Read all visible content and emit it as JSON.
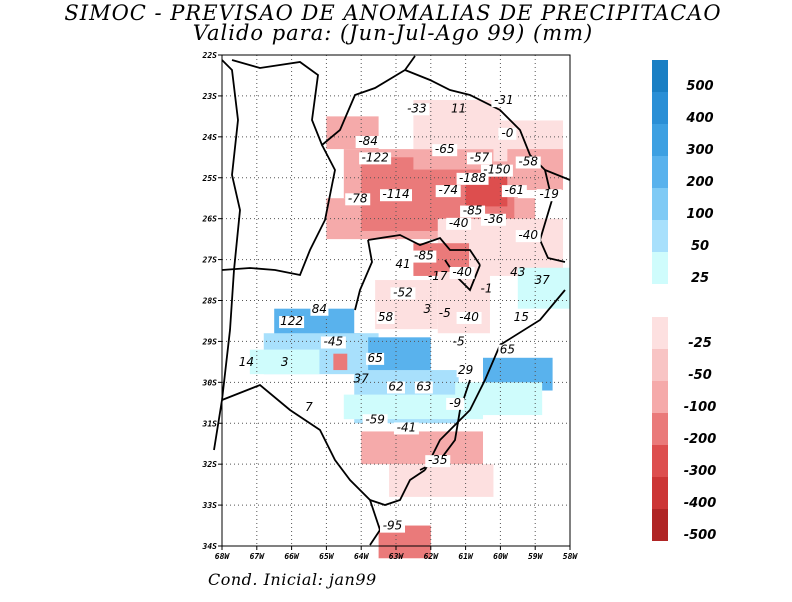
{
  "title": {
    "line1": "SIMOC - PREVISAO DE ANOMALIAS DE PRECIPITACAO",
    "line2": "Valido para: (Jun-Jul-Ago 99) (mm)"
  },
  "footer": "Cond. Inicial: jan99",
  "map": {
    "lon_ticks": [
      "68W",
      "67W",
      "66W",
      "65W",
      "64W",
      "63W",
      "62W",
      "61W",
      "60W",
      "59W",
      "58W"
    ],
    "lat_ticks": [
      "22S",
      "23S",
      "24S",
      "25S",
      "26S",
      "27S",
      "28S",
      "29S",
      "30S",
      "31S",
      "32S",
      "33S",
      "34S"
    ]
  },
  "contour_labels": [
    {
      "text": "-33",
      "lon": -62.4,
      "lat": -23.4,
      "boxed": true
    },
    {
      "text": "11",
      "lon": -61.2,
      "lat": -23.4,
      "boxed": false
    },
    {
      "text": "-31",
      "lon": -59.9,
      "lat": -23.2,
      "boxed": true
    },
    {
      "text": "-0",
      "lon": -59.8,
      "lat": -24.0,
      "boxed": true
    },
    {
      "text": "-84",
      "lon": -63.8,
      "lat": -24.2,
      "boxed": true
    },
    {
      "text": "-65",
      "lon": -61.6,
      "lat": -24.4,
      "boxed": true
    },
    {
      "text": "-57",
      "lon": -60.6,
      "lat": -24.6,
      "boxed": true
    },
    {
      "text": "-58",
      "lon": -59.2,
      "lat": -24.7,
      "boxed": true
    },
    {
      "text": "-122",
      "lon": -63.6,
      "lat": -24.6,
      "boxed": true
    },
    {
      "text": "-150",
      "lon": -60.1,
      "lat": -24.9,
      "boxed": true
    },
    {
      "text": "-188",
      "lon": -60.8,
      "lat": -25.1,
      "boxed": true
    },
    {
      "text": "-78",
      "lon": -64.1,
      "lat": -25.6,
      "boxed": true
    },
    {
      "text": "-114",
      "lon": -63.0,
      "lat": -25.5,
      "boxed": true
    },
    {
      "text": "-74",
      "lon": -61.5,
      "lat": -25.4,
      "boxed": true
    },
    {
      "text": "-61",
      "lon": -59.6,
      "lat": -25.4,
      "boxed": true
    },
    {
      "text": "-19",
      "lon": -58.6,
      "lat": -25.5,
      "boxed": true
    },
    {
      "text": "-85",
      "lon": -60.8,
      "lat": -25.9,
      "boxed": true
    },
    {
      "text": "-36",
      "lon": -60.2,
      "lat": -26.1,
      "boxed": true
    },
    {
      "text": "-40",
      "lon": -61.2,
      "lat": -26.2,
      "boxed": true
    },
    {
      "text": "-40",
      "lon": -59.2,
      "lat": -26.5,
      "boxed": true
    },
    {
      "text": "-85",
      "lon": -62.2,
      "lat": -27.0,
      "boxed": true
    },
    {
      "text": "41",
      "lon": -62.8,
      "lat": -27.2,
      "boxed": true
    },
    {
      "text": "-17",
      "lon": -61.8,
      "lat": -27.5,
      "boxed": false
    },
    {
      "text": "-40",
      "lon": -61.1,
      "lat": -27.4,
      "boxed": true
    },
    {
      "text": "43",
      "lon": -59.5,
      "lat": -27.4,
      "boxed": false
    },
    {
      "text": "37",
      "lon": -58.8,
      "lat": -27.6,
      "boxed": false
    },
    {
      "text": "-1",
      "lon": -60.4,
      "lat": -27.8,
      "boxed": false
    },
    {
      "text": "-52",
      "lon": -62.8,
      "lat": -27.9,
      "boxed": true
    },
    {
      "text": "122",
      "lon": -66.0,
      "lat": -28.6,
      "boxed": true
    },
    {
      "text": "84",
      "lon": -65.2,
      "lat": -28.3,
      "boxed": true
    },
    {
      "text": "58",
      "lon": -63.3,
      "lat": -28.5,
      "boxed": true
    },
    {
      "text": "3",
      "lon": -62.1,
      "lat": -28.3,
      "boxed": false
    },
    {
      "text": "-5",
      "lon": -61.6,
      "lat": -28.4,
      "boxed": false
    },
    {
      "text": "-40",
      "lon": -60.9,
      "lat": -28.5,
      "boxed": true
    },
    {
      "text": "15",
      "lon": -59.4,
      "lat": -28.5,
      "boxed": false
    },
    {
      "text": "-45",
      "lon": -64.8,
      "lat": -29.1,
      "boxed": true
    },
    {
      "text": "-5",
      "lon": -61.2,
      "lat": -29.1,
      "boxed": false
    },
    {
      "text": "65",
      "lon": -59.8,
      "lat": -29.3,
      "boxed": true
    },
    {
      "text": "14",
      "lon": -67.3,
      "lat": -29.6,
      "boxed": false
    },
    {
      "text": "3",
      "lon": -66.2,
      "lat": -29.6,
      "boxed": false
    },
    {
      "text": "65",
      "lon": -63.6,
      "lat": -29.5,
      "boxed": true
    },
    {
      "text": "29",
      "lon": -61.0,
      "lat": -29.8,
      "boxed": true
    },
    {
      "text": "37",
      "lon": -64.0,
      "lat": -30.0,
      "boxed": false
    },
    {
      "text": "62",
      "lon": -63.0,
      "lat": -30.2,
      "boxed": true
    },
    {
      "text": "63",
      "lon": -62.2,
      "lat": -30.2,
      "boxed": true
    },
    {
      "text": "-9",
      "lon": -61.3,
      "lat": -30.6,
      "boxed": true
    },
    {
      "text": "7",
      "lon": -65.5,
      "lat": -30.7,
      "boxed": false
    },
    {
      "text": "-59",
      "lon": -63.6,
      "lat": -31.0,
      "boxed": true
    },
    {
      "text": "-41",
      "lon": -62.7,
      "lat": -31.2,
      "boxed": true
    },
    {
      "text": "-35",
      "lon": -61.8,
      "lat": -32.0,
      "boxed": true
    },
    {
      "text": "-95",
      "lon": -63.1,
      "lat": -33.6,
      "boxed": true
    }
  ],
  "field_cells": [
    {
      "lon": -65.0,
      "lat": -23.5,
      "w": 1.5,
      "h": 0.8,
      "color": "#f5aaaa"
    },
    {
      "lon": -64.5,
      "lat": -24.3,
      "w": 5.0,
      "h": 1.2,
      "color": "#f5aaaa"
    },
    {
      "lon": -65.0,
      "lat": -25.5,
      "w": 6.0,
      "h": 1.0,
      "color": "#f5aaaa"
    },
    {
      "lon": -64.0,
      "lat": -24.5,
      "w": 1.5,
      "h": 1.8,
      "color": "#ea7a7a"
    },
    {
      "lon": -62.8,
      "lat": -24.8,
      "w": 3.2,
      "h": 1.5,
      "color": "#ea7a7a"
    },
    {
      "lon": -61.0,
      "lat": -24.9,
      "w": 1.2,
      "h": 0.8,
      "color": "#dd4e4e"
    },
    {
      "lon": -62.5,
      "lat": -23.1,
      "w": 2.5,
      "h": 1.2,
      "color": "#fde0e0"
    },
    {
      "lon": -60.2,
      "lat": -23.6,
      "w": 2.0,
      "h": 1.0,
      "color": "#fde0e0"
    },
    {
      "lon": -59.8,
      "lat": -24.3,
      "w": 1.6,
      "h": 1.0,
      "color": "#f5aaaa"
    },
    {
      "lon": -61.8,
      "lat": -26.0,
      "w": 3.6,
      "h": 1.4,
      "color": "#fde0e0"
    },
    {
      "lon": -62.5,
      "lat": -26.6,
      "w": 1.6,
      "h": 0.8,
      "color": "#ea7a7a"
    },
    {
      "lon": -61.8,
      "lat": -27.3,
      "w": 1.5,
      "h": 1.5,
      "color": "#fde0e0"
    },
    {
      "lon": -63.6,
      "lat": -27.5,
      "w": 1.8,
      "h": 1.2,
      "color": "#fde0e0"
    },
    {
      "lon": -59.5,
      "lat": -27.2,
      "w": 1.5,
      "h": 1.0,
      "color": "#cffcfc"
    },
    {
      "lon": -66.5,
      "lat": -28.2,
      "w": 2.3,
      "h": 1.0,
      "color": "#59b2ed"
    },
    {
      "lon": -65.8,
      "lat": -28.8,
      "w": 1.8,
      "h": 0.8,
      "color": "#59b2ed"
    },
    {
      "lon": -66.8,
      "lat": -28.8,
      "w": 3.3,
      "h": 1.0,
      "color": "#a8e0fc"
    },
    {
      "lon": -67.2,
      "lat": -29.2,
      "w": 2.0,
      "h": 0.6,
      "color": "#cffcfc"
    },
    {
      "lon": -63.8,
      "lat": -28.9,
      "w": 1.8,
      "h": 1.5,
      "color": "#59b2ed"
    },
    {
      "lon": -64.2,
      "lat": -29.7,
      "w": 3.0,
      "h": 1.3,
      "color": "#a8e0fc"
    },
    {
      "lon": -64.5,
      "lat": -30.3,
      "w": 4.0,
      "h": 0.6,
      "color": "#cffcfc"
    },
    {
      "lon": -60.5,
      "lat": -29.4,
      "w": 2.0,
      "h": 0.8,
      "color": "#59b2ed"
    },
    {
      "lon": -61.3,
      "lat": -30.0,
      "w": 2.5,
      "h": 0.8,
      "color": "#cffcfc"
    },
    {
      "lon": -64.0,
      "lat": -31.2,
      "w": 3.5,
      "h": 0.8,
      "color": "#f5aaaa"
    },
    {
      "lon": -63.2,
      "lat": -32.0,
      "w": 3.0,
      "h": 0.8,
      "color": "#fde0e0"
    },
    {
      "lon": -63.5,
      "lat": -33.5,
      "w": 1.5,
      "h": 0.8,
      "color": "#ea7a7a"
    },
    {
      "lon": -64.8,
      "lat": -29.3,
      "w": 0.4,
      "h": 0.4,
      "color": "#ea7a7a"
    }
  ],
  "colorbar": {
    "positive": [
      {
        "label": "500",
        "color": "#1a7fc4"
      },
      {
        "label": "400",
        "color": "#2a8fd6"
      },
      {
        "label": "300",
        "color": "#3da0e2"
      },
      {
        "label": "200",
        "color": "#59b2ed"
      },
      {
        "label": "100",
        "color": "#7fcaf5"
      },
      {
        "label": "50",
        "color": "#a8e0fc"
      },
      {
        "label": "25",
        "color": "#cffcfc"
      }
    ],
    "negative": [
      {
        "label": "-25",
        "color": "#fde0e0"
      },
      {
        "label": "-50",
        "color": "#f8c4c4"
      },
      {
        "label": "-100",
        "color": "#f5aaaa"
      },
      {
        "label": "-200",
        "color": "#ea7a7a"
      },
      {
        "label": "-300",
        "color": "#dd4e4e"
      },
      {
        "label": "-400",
        "color": "#cc3535"
      },
      {
        "label": "-500",
        "color": "#b02525"
      }
    ]
  }
}
